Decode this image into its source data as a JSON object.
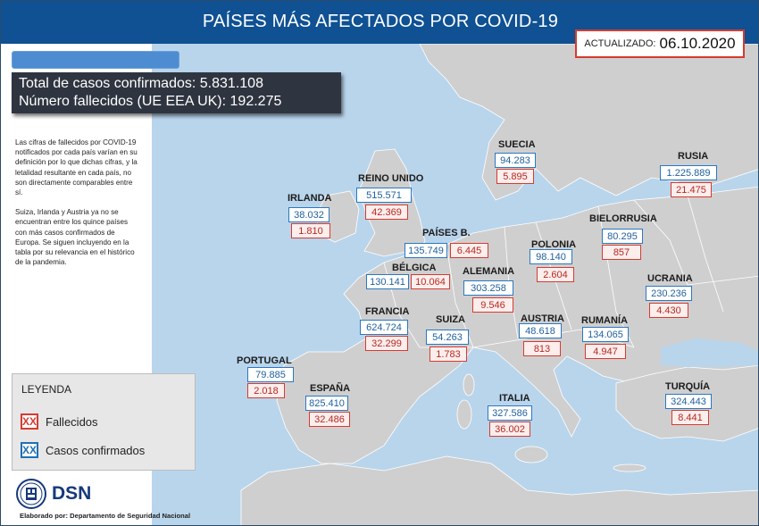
{
  "header": {
    "title": "PAÍSES MÁS AFECTADOS POR COVID-19"
  },
  "updated": {
    "label": "ACTUALIZADO:",
    "date": "06.10.2020"
  },
  "summary": {
    "total_label": "Total de casos confirmados:",
    "total_value": "5.831.108",
    "deaths_label": "Número fallecidos (UE EEA UK):",
    "deaths_value": "192.275"
  },
  "notes": {
    "paragraph1": "Las cifras de fallecidos por COVID-19 notificados por cada país varían en su definición por lo que dichas cifras, y la letalidad resultante en cada país, no son directamente comparables entre sí.",
    "paragraph2": "Suiza, Irlanda y Austria ya no se encuentran entre los quince países con más casos confirmados de Europa. Se siguen incluyendo en la tabla por su relevancia en el histórico de la pandemia."
  },
  "legend": {
    "title": "LEYENDA",
    "deaths_symbol": "XX",
    "deaths_label": "Fallecidos",
    "cases_symbol": "XX",
    "cases_label": "Casos confirmados"
  },
  "logo": {
    "text": "DSN",
    "icon": "dsn-seal-icon"
  },
  "credit": "Elaborado por: Departamento de Seguridad Nacional",
  "colors": {
    "header": "#0f5193",
    "sea": "#b9d5ec",
    "land": "#cfcfcf",
    "deaths": "#d63b30",
    "cases": "#2a78c2"
  },
  "countries": [
    {
      "name": "SUECIA",
      "cases": "94.283",
      "deaths": "5.895"
    },
    {
      "name": "RUSIA",
      "cases": "1.225.889",
      "deaths": "21.475"
    },
    {
      "name": "REINO UNIDO",
      "cases": "515.571",
      "deaths": "42.369"
    },
    {
      "name": "IRLANDA",
      "cases": "38.032",
      "deaths": "1.810"
    },
    {
      "name": "PAÍSES B.",
      "cases": "135.749",
      "deaths": "6.445"
    },
    {
      "name": "BIELORRUSIA",
      "cases": "80.295",
      "deaths": "857"
    },
    {
      "name": "POLONIA",
      "cases": "98.140",
      "deaths": "2.604"
    },
    {
      "name": "BÉLGICA",
      "cases": "130.141",
      "deaths": "10.064"
    },
    {
      "name": "ALEMANIA",
      "cases": "303.258",
      "deaths": "9.546"
    },
    {
      "name": "UCRANIA",
      "cases": "230.236",
      "deaths": "4.430"
    },
    {
      "name": "FRANCIA",
      "cases": "624.724",
      "deaths": "32.299"
    },
    {
      "name": "SUIZA",
      "cases": "54.263",
      "deaths": "1.783"
    },
    {
      "name": "AUSTRIA",
      "cases": "48.618",
      "deaths": "813"
    },
    {
      "name": "RUMANÍA",
      "cases": "134.065",
      "deaths": "4.947"
    },
    {
      "name": "PORTUGAL",
      "cases": "79.885",
      "deaths": "2.018"
    },
    {
      "name": "ESPAÑA",
      "cases": "825.410",
      "deaths": "32.486"
    },
    {
      "name": "ITALIA",
      "cases": "327.586",
      "deaths": "36.002"
    },
    {
      "name": "TURQUÍA",
      "cases": "324.443",
      "deaths": "8.441"
    }
  ]
}
